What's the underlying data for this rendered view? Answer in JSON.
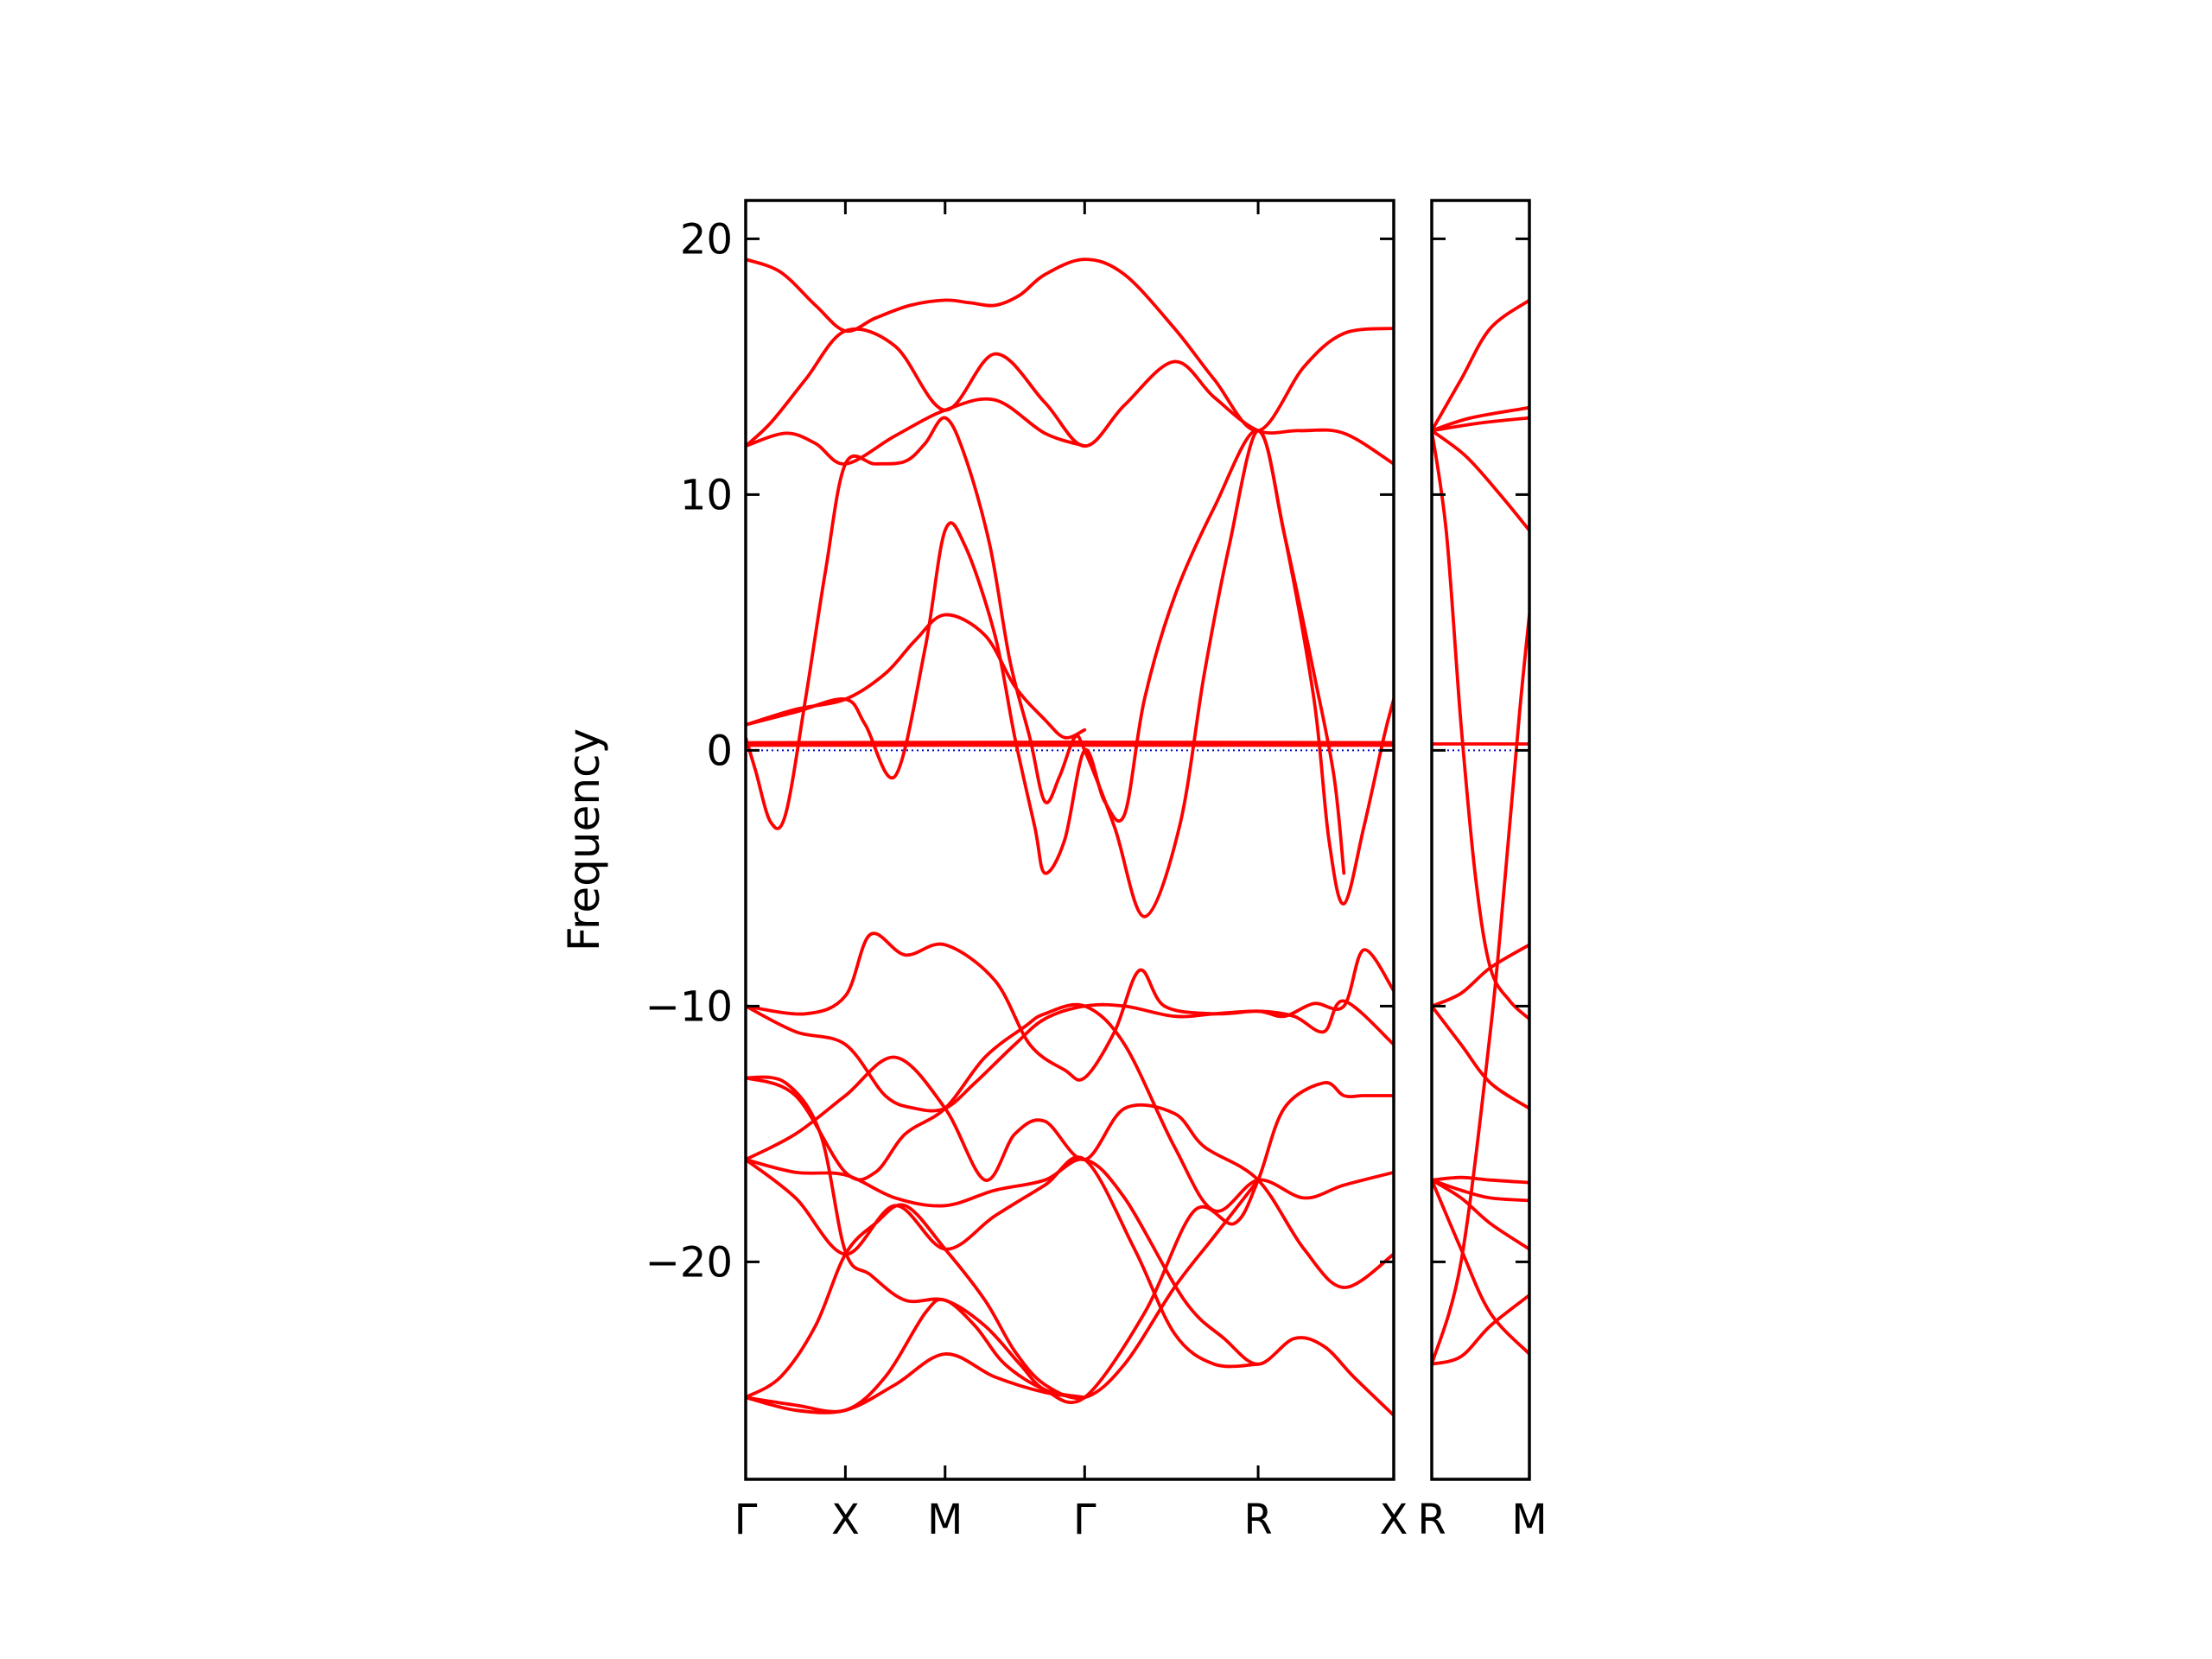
{
  "chart_data": {
    "type": "line",
    "title": "",
    "ylabel": "Frequency",
    "xlabel": "",
    "ylim": [
      -28.5,
      21.5
    ],
    "yticks": [
      -20,
      -10,
      0,
      10,
      20
    ],
    "ytick_labels": [
      "−20",
      "−10",
      "0",
      "10",
      "20"
    ],
    "grid": false,
    "legend": "none",
    "colors": {
      "bands": "#ff0000",
      "zero_line": "#0000cc",
      "axes": "#000000"
    },
    "panels": [
      {
        "name": "panel-main",
        "xlim": [
          0,
          6.5
        ],
        "x_tick_positions": [
          0,
          1,
          2,
          3.4,
          5.14,
          6.5
        ],
        "x_tick_labels": [
          "Γ",
          "X",
          "M",
          "Γ",
          "R",
          "X"
        ]
      },
      {
        "name": "panel-right",
        "xlim": [
          0,
          1
        ],
        "x_tick_positions": [
          0,
          1
        ],
        "x_tick_labels": [
          "R",
          "M"
        ]
      }
    ],
    "series": [
      {
        "panel": 0,
        "x": [
          0,
          0.35,
          0.7,
          1.0,
          1.3,
          1.65,
          2.0,
          2.25,
          2.5,
          2.75,
          3.0,
          3.4,
          3.8,
          4.3,
          4.7,
          5.14,
          5.6,
          6.0,
          6.5
        ],
        "y": [
          19.2,
          18.7,
          17.4,
          16.4,
          16.9,
          17.4,
          17.6,
          17.5,
          17.4,
          17.8,
          18.6,
          19.2,
          18.6,
          16.5,
          14.5,
          12.5,
          15.0,
          16.3,
          16.5
        ]
      },
      {
        "panel": 0,
        "x": [
          0,
          0.25,
          0.6,
          1.0,
          1.5,
          2.0,
          2.5,
          3.0,
          3.4,
          3.8,
          4.3,
          4.7,
          5.14,
          5.55,
          6.0,
          6.5
        ],
        "y": [
          11.9,
          12.8,
          14.5,
          16.4,
          15.8,
          13.3,
          15.5,
          13.6,
          11.9,
          13.5,
          15.2,
          13.8,
          12.5,
          12.5,
          12.4,
          11.2
        ]
      },
      {
        "panel": 0,
        "x": [
          0,
          0.4,
          0.7,
          1.0,
          1.5,
          2.0,
          2.5,
          3.0,
          3.4
        ],
        "y": [
          11.9,
          12.4,
          12.0,
          11.2,
          12.3,
          13.3,
          13.7,
          12.4,
          11.9
        ]
      },
      {
        "panel": 0,
        "x": [
          0,
          0.1,
          0.25,
          0.4,
          0.6,
          0.8,
          1.0,
          1.3,
          1.6,
          1.8,
          2.0,
          2.2,
          2.45,
          2.65,
          2.85,
          3.0,
          3.15,
          3.3,
          3.4,
          3.7,
          4.0,
          4.35,
          4.6,
          4.85,
          5.14,
          5.4,
          5.7,
          5.85,
          6.0,
          6.2,
          6.4,
          6.5
        ],
        "y": [
          0.5,
          -0.8,
          -2.8,
          -2.5,
          2.0,
          7.0,
          11.2,
          11.2,
          11.3,
          12.0,
          13.0,
          11.5,
          8.0,
          3.5,
          0.5,
          -2.0,
          -1.0,
          0.5,
          0.0,
          -3.0,
          -6.5,
          -3.0,
          3.0,
          8.0,
          12.5,
          8.5,
          2.0,
          -3.5,
          -6.0,
          -3.0,
          0.5,
          2.0
        ]
      },
      {
        "panel": 0,
        "x": [
          0,
          0.5,
          1.0,
          1.2,
          1.5,
          1.8,
          2.0,
          2.2,
          2.5,
          2.7,
          2.9,
          3.0,
          3.2,
          3.4,
          3.6,
          3.8,
          4.0,
          4.3,
          4.7,
          5.14,
          5.4,
          5.7,
          5.9,
          6.0
        ],
        "y": [
          1.0,
          1.5,
          2.0,
          1.0,
          -1.0,
          4.0,
          8.6,
          8.0,
          4.5,
          0.5,
          -3.0,
          -4.8,
          -3.5,
          0.0,
          -2.0,
          -2.5,
          2.0,
          6.0,
          9.5,
          12.5,
          8.5,
          3.0,
          -1.0,
          -4.8
        ]
      },
      {
        "panel": 0,
        "x": [
          0,
          0.5,
          1.0,
          1.4,
          1.7,
          2.0,
          2.4,
          2.7,
          3.0,
          3.2,
          3.4
        ],
        "y": [
          1.0,
          1.6,
          2.0,
          3.0,
          4.3,
          5.3,
          4.5,
          2.5,
          1.2,
          0.5,
          0.8
        ]
      },
      {
        "panel": 0,
        "x": [
          0,
          0.6,
          1.0,
          1.25,
          1.6,
          2.0,
          2.5,
          2.85,
          3.2,
          3.4,
          3.7,
          3.95,
          4.2,
          4.7,
          5.14,
          5.4,
          5.7,
          6.0,
          6.2,
          6.5
        ],
        "y": [
          -10.0,
          -10.3,
          -9.6,
          -7.2,
          -8.0,
          -7.6,
          -9.0,
          -11.5,
          -12.5,
          -12.8,
          -11.0,
          -8.6,
          -10.0,
          -10.3,
          -10.2,
          -10.4,
          -9.9,
          -10.0,
          -7.8,
          -9.4
        ]
      },
      {
        "panel": 0,
        "x": [
          0,
          0.5,
          1.0,
          1.4,
          1.7,
          2.0,
          2.3,
          2.7,
          3.0,
          3.4,
          3.8,
          4.3,
          4.7,
          5.14,
          5.5,
          5.8,
          6.0,
          6.5
        ],
        "y": [
          -10.0,
          -11.0,
          -11.5,
          -13.5,
          -14.0,
          -14.0,
          -13.0,
          -11.5,
          -10.5,
          -10.0,
          -10.0,
          -10.4,
          -10.3,
          -10.2,
          -10.4,
          -11.0,
          -9.8,
          -11.5
        ]
      },
      {
        "panel": 0,
        "x": [
          0,
          0.5,
          1.0,
          1.3,
          1.6,
          2.0,
          2.4,
          2.8,
          3.0,
          3.4,
          3.8,
          4.3,
          4.7,
          5.14,
          5.6,
          6.0,
          6.5
        ],
        "y": [
          -12.8,
          -13.5,
          -16.5,
          -16.5,
          -15.0,
          -14.0,
          -12.0,
          -10.8,
          -10.3,
          -10.0,
          -11.5,
          -15.5,
          -18.0,
          -16.8,
          -17.5,
          -17.0,
          -16.5
        ]
      },
      {
        "panel": 0,
        "x": [
          0,
          0.4,
          0.75,
          1.0,
          1.25,
          1.6,
          2.0,
          2.4,
          2.75,
          3.0,
          3.4,
          4.0,
          4.5,
          4.9,
          5.14,
          5.4,
          5.8,
          6.0,
          6.2,
          6.5
        ],
        "y": [
          -12.8,
          -13.0,
          -15.0,
          -19.6,
          -20.5,
          -21.5,
          -21.5,
          -22.5,
          -24.0,
          -25.0,
          -25.3,
          -22.0,
          -18.0,
          -18.5,
          -16.8,
          -14.0,
          -13.0,
          -13.5,
          -13.5,
          -13.5
        ]
      },
      {
        "panel": 0,
        "x": [
          0,
          0.5,
          1.0,
          1.5,
          2.0,
          2.4,
          2.7,
          3.0,
          3.4,
          3.8,
          4.3,
          4.6,
          5.14,
          5.6,
          6.0,
          6.5
        ],
        "y": [
          -16.0,
          -15.0,
          -13.5,
          -12.0,
          -14.0,
          -16.8,
          -15.0,
          -14.5,
          -16.0,
          -14.0,
          -14.2,
          -15.5,
          -16.8,
          -19.5,
          -21.0,
          -19.7
        ]
      },
      {
        "panel": 0,
        "x": [
          0,
          0.5,
          1.0,
          1.5,
          2.0,
          2.5,
          3.0,
          3.4,
          3.8,
          4.4,
          4.8,
          5.14,
          5.5,
          5.8,
          6.1,
          6.5
        ],
        "y": [
          -16.0,
          -16.5,
          -16.6,
          -17.5,
          -17.8,
          -17.2,
          -16.8,
          -16.0,
          -17.5,
          -21.5,
          -23.0,
          -24.0,
          -23.0,
          -23.3,
          -24.5,
          -26.0
        ]
      },
      {
        "panel": 0,
        "x": [
          0,
          0.5,
          1.0,
          1.5,
          2.0,
          2.5,
          3.0,
          3.4,
          3.9,
          4.3,
          4.7,
          5.14
        ],
        "y": [
          -16.0,
          -17.5,
          -19.7,
          -17.8,
          -19.5,
          -18.2,
          -17.0,
          -16.0,
          -19.5,
          -22.8,
          -24.0,
          -24.0
        ]
      },
      {
        "panel": 0,
        "x": [
          0,
          0.35,
          0.7,
          1.0,
          1.3,
          1.6,
          2.0,
          2.4,
          2.7,
          3.0,
          3.4,
          3.8,
          4.3,
          4.7,
          5.14
        ],
        "y": [
          -25.3,
          -24.5,
          -22.5,
          -19.7,
          -18.5,
          -17.8,
          -19.5,
          -21.5,
          -23.5,
          -24.8,
          -25.3,
          -24.0,
          -21.0,
          -19.0,
          -16.8
        ]
      },
      {
        "panel": 0,
        "x": [
          0,
          0.5,
          1.0,
          1.5,
          2.0,
          2.5,
          3.0,
          3.4
        ],
        "y": [
          -25.3,
          -25.8,
          -25.8,
          -24.8,
          -23.6,
          -24.5,
          -25.1,
          -25.3
        ]
      },
      {
        "panel": 0,
        "x": [
          0,
          0.5,
          1.0,
          1.4,
          1.8,
          2.0,
          2.3,
          2.6,
          3.0,
          3.4
        ],
        "y": [
          -25.3,
          -25.6,
          -25.8,
          -24.5,
          -22.0,
          -21.5,
          -22.5,
          -24.0,
          -25.0,
          -25.3
        ]
      },
      {
        "panel": 0,
        "x": [
          0,
          0.1,
          6.5
        ],
        "y": [
          0.0,
          0.3,
          0.3
        ]
      },
      {
        "panel": 0,
        "x": [
          0,
          6.5
        ],
        "y": [
          0.2,
          0.2
        ]
      },
      {
        "panel": 1,
        "x": [
          0,
          0.3,
          0.6,
          1.0
        ],
        "y": [
          12.5,
          14.5,
          16.5,
          17.6
        ]
      },
      {
        "panel": 1,
        "x": [
          0,
          0.4,
          1.0
        ],
        "y": [
          12.5,
          13.0,
          13.4
        ]
      },
      {
        "panel": 1,
        "x": [
          0,
          0.5,
          1.0
        ],
        "y": [
          12.5,
          12.8,
          13.0
        ]
      },
      {
        "panel": 1,
        "x": [
          0,
          0.35,
          0.7,
          1.0
        ],
        "y": [
          12.5,
          11.5,
          10.0,
          8.6
        ]
      },
      {
        "panel": 1,
        "x": [
          0,
          0.15,
          0.3,
          0.45,
          0.6,
          0.8,
          1.0
        ],
        "y": [
          12.5,
          8.5,
          1.0,
          -5.0,
          -8.5,
          -9.8,
          -10.5
        ]
      },
      {
        "panel": 1,
        "x": [
          0,
          0.3,
          0.6,
          0.75,
          0.9,
          1.0
        ],
        "y": [
          -24.0,
          -20.0,
          -11.0,
          -5.0,
          1.5,
          5.3
        ]
      },
      {
        "panel": 1,
        "x": [
          0,
          0.3,
          0.6,
          1.0
        ],
        "y": [
          -10.0,
          -9.5,
          -8.5,
          -7.6
        ]
      },
      {
        "panel": 1,
        "x": [
          0,
          0.3,
          0.6,
          1.0
        ],
        "y": [
          -10.0,
          -11.5,
          -13.0,
          -14.0
        ]
      },
      {
        "panel": 1,
        "x": [
          0,
          0.3,
          0.6,
          1.0
        ],
        "y": [
          -16.8,
          -16.7,
          -16.8,
          -16.9
        ]
      },
      {
        "panel": 1,
        "x": [
          0,
          0.3,
          0.6,
          1.0
        ],
        "y": [
          -16.8,
          -17.2,
          -17.5,
          -17.6
        ]
      },
      {
        "panel": 1,
        "x": [
          0,
          0.3,
          0.6,
          1.0
        ],
        "y": [
          -16.8,
          -17.5,
          -18.5,
          -19.5
        ]
      },
      {
        "panel": 1,
        "x": [
          0,
          0.3,
          0.6,
          1.0
        ],
        "y": [
          -16.8,
          -19.5,
          -22.0,
          -23.6
        ]
      },
      {
        "panel": 1,
        "x": [
          0,
          0.3,
          0.6,
          1.0
        ],
        "y": [
          -24.0,
          -23.7,
          -22.5,
          -21.3
        ]
      },
      {
        "panel": 1,
        "x": [
          0,
          1.0
        ],
        "y": [
          0.25,
          0.25
        ]
      }
    ]
  }
}
